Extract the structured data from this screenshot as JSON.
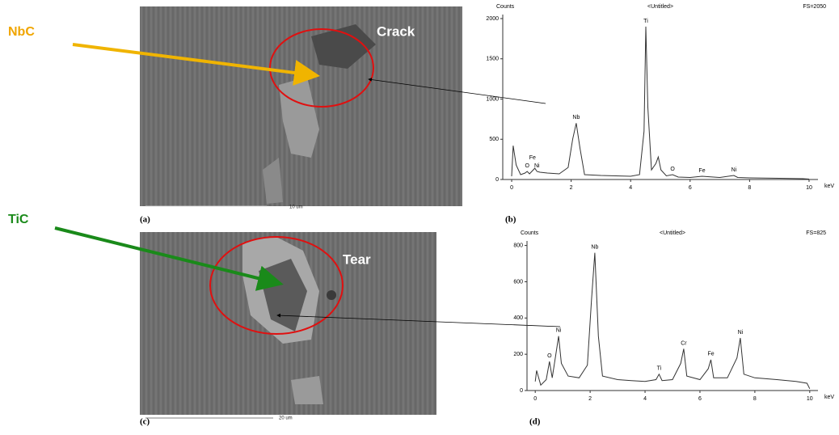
{
  "figure": {
    "callouts": [
      {
        "label": "NbC",
        "color": "#f0a500"
      },
      {
        "label": "TiC",
        "color": "#1a8a1a"
      }
    ],
    "images": [
      {
        "feature": "Crack",
        "scale": "10 um",
        "panel_label": "(a)"
      },
      {
        "feature": "Tear",
        "scale": "20 um",
        "panel_label": "(c)"
      }
    ]
  },
  "chart_data": [
    {
      "type": "line",
      "title": "<Untitled>",
      "y_label": "Counts",
      "fs_label": "FS=2050",
      "x_label": "keV",
      "panel_label": "(b)",
      "color": "#333333",
      "xlim": [
        -0.3,
        10.3
      ],
      "xticks": [
        0,
        2,
        4,
        6,
        8,
        10
      ],
      "ylim": [
        0,
        2050
      ],
      "yticks": [
        0,
        500,
        1000,
        1500,
        2000
      ],
      "x": [
        0,
        0.05,
        0.15,
        0.3,
        0.45,
        0.52,
        0.6,
        0.7,
        0.78,
        0.85,
        0.95,
        1.2,
        1.6,
        1.9,
        2.05,
        2.17,
        2.3,
        2.45,
        3,
        3.5,
        4,
        4.3,
        4.45,
        4.51,
        4.58,
        4.7,
        4.85,
        4.93,
        5.02,
        5.2,
        5.41,
        5.6,
        6,
        6.4,
        7,
        7.47,
        7.6,
        8,
        9,
        9.8,
        10
      ],
      "values": [
        40,
        420,
        180,
        60,
        80,
        100,
        70,
        110,
        140,
        100,
        90,
        80,
        70,
        150,
        500,
        700,
        380,
        60,
        50,
        45,
        40,
        60,
        600,
        1900,
        900,
        120,
        200,
        280,
        120,
        45,
        60,
        30,
        25,
        40,
        25,
        50,
        25,
        20,
        15,
        10,
        5
      ],
      "peak_labels": [
        {
          "label": "O",
          "x": 0.52
        },
        {
          "label": "Fe",
          "x": 0.7
        },
        {
          "label": "Ni",
          "x": 0.85
        },
        {
          "label": "Nb",
          "x": 2.17
        },
        {
          "label": "Ti",
          "x": 4.51
        },
        {
          "label": "O",
          "x": 5.41
        },
        {
          "label": "Fe",
          "x": 6.4
        },
        {
          "label": "Ni",
          "x": 7.47
        }
      ]
    },
    {
      "type": "line",
      "title": "<Untitled>",
      "y_label": "Counts",
      "fs_label": "FS=825",
      "x_label": "keV",
      "panel_label": "(d)",
      "color": "#333333",
      "xlim": [
        -0.3,
        10.3
      ],
      "xticks": [
        0,
        2,
        4,
        6,
        8,
        10
      ],
      "ylim": [
        0,
        825
      ],
      "yticks": [
        0,
        200,
        400,
        600,
        800
      ],
      "x": [
        0,
        0.05,
        0.2,
        0.4,
        0.52,
        0.62,
        0.75,
        0.85,
        0.95,
        1.2,
        1.6,
        1.9,
        2.05,
        2.17,
        2.3,
        2.45,
        3,
        3.5,
        4,
        4.4,
        4.51,
        4.62,
        5,
        5.3,
        5.41,
        5.52,
        6,
        6.3,
        6.4,
        6.5,
        7,
        7.35,
        7.47,
        7.6,
        8,
        8.8,
        9.5,
        9.9,
        10
      ],
      "values": [
        50,
        110,
        30,
        60,
        160,
        70,
        200,
        300,
        150,
        80,
        70,
        140,
        500,
        760,
        300,
        80,
        60,
        55,
        50,
        60,
        90,
        55,
        60,
        150,
        230,
        80,
        60,
        120,
        170,
        70,
        70,
        180,
        290,
        90,
        70,
        60,
        50,
        40,
        10
      ],
      "peak_labels": [
        {
          "label": "O",
          "x": 0.52
        },
        {
          "label": "Ni",
          "x": 0.85
        },
        {
          "label": "Nb",
          "x": 2.17
        },
        {
          "label": "Ti",
          "x": 4.51
        },
        {
          "label": "Cr",
          "x": 5.41
        },
        {
          "label": "Fe",
          "x": 6.4
        },
        {
          "label": "Ni",
          "x": 7.47
        }
      ]
    }
  ]
}
